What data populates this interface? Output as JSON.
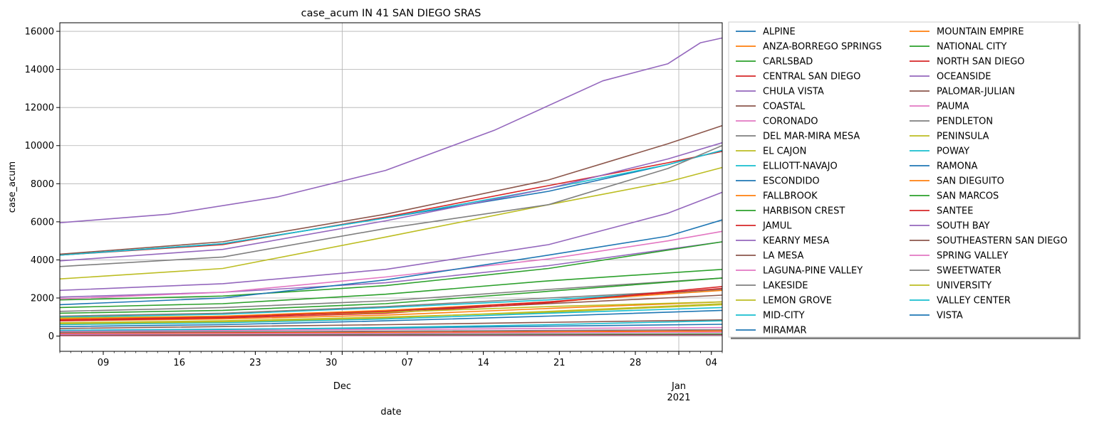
{
  "chart_data": {
    "type": "line",
    "title": "case_acum IN 41 SAN DIEGO SRAS",
    "xlabel": "date",
    "ylabel": "case_acum",
    "ylim": [
      -800,
      16450
    ],
    "y_ticks": [
      0,
      2000,
      4000,
      6000,
      8000,
      10000,
      12000,
      14000,
      16000
    ],
    "y_tick_labels": [
      "0",
      "2000",
      "4000",
      "6000",
      "8000",
      "10000",
      "12000",
      "14000",
      "16000"
    ],
    "xlim": [
      "2020-11-05",
      "2021-01-05"
    ],
    "x_major_ticks": [
      {
        "date": "2020-11-09",
        "label": "09"
      },
      {
        "date": "2020-11-16",
        "label": "16"
      },
      {
        "date": "2020-11-23",
        "label": "23"
      },
      {
        "date": "2020-11-30",
        "label": "30"
      },
      {
        "date": "2020-12-07",
        "label": "07"
      },
      {
        "date": "2020-12-14",
        "label": "14"
      },
      {
        "date": "2020-12-21",
        "label": "21"
      },
      {
        "date": "2020-12-28",
        "label": "28"
      },
      {
        "date": "2021-01-04",
        "label": "04"
      }
    ],
    "x_month_labels": [
      {
        "date": "2020-12-01",
        "label": "Dec"
      },
      {
        "date": "2021-01-01",
        "label": "Jan",
        "sublabel": "2021"
      }
    ],
    "grid": true,
    "legend": {
      "placement": "outside-right",
      "columns": 2
    },
    "series": [
      {
        "name": "ALPINE",
        "color": "#1f77b4",
        "x": [
          "2020-11-05",
          "2020-11-20",
          "2020-12-05",
          "2020-12-20",
          "2021-01-05"
        ],
        "values": [
          300,
          360,
          420,
          520,
          620
        ]
      },
      {
        "name": "ANZA-BORREGO SPRINGS",
        "color": "#ff7f0e",
        "x": [
          "2020-11-05",
          "2020-12-05",
          "2021-01-05"
        ],
        "values": [
          20,
          40,
          70
        ]
      },
      {
        "name": "CARLSBAD",
        "color": "#2ca02c",
        "x": [
          "2020-11-05",
          "2020-11-20",
          "2020-12-05",
          "2020-12-20",
          "2021-01-05"
        ],
        "values": [
          1500,
          1700,
          2200,
          2900,
          3500
        ]
      },
      {
        "name": "CENTRAL SAN DIEGO",
        "color": "#d62728",
        "x": [
          "2020-11-05",
          "2020-11-20",
          "2020-12-05",
          "2020-12-20",
          "2020-12-31",
          "2021-01-05"
        ],
        "values": [
          4250,
          4800,
          6250,
          7900,
          9100,
          9700
        ]
      },
      {
        "name": "CHULA VISTA",
        "color": "#9467bd",
        "x": [
          "2020-11-05",
          "2020-11-15",
          "2020-11-25",
          "2020-12-05",
          "2020-12-15",
          "2020-12-25",
          "2020-12-31",
          "2021-01-03",
          "2021-01-05"
        ],
        "values": [
          5950,
          6400,
          7300,
          8700,
          10800,
          13400,
          14300,
          15400,
          15650
        ]
      },
      {
        "name": "COASTAL",
        "color": "#8c564b",
        "x": [
          "2020-11-05",
          "2020-12-05",
          "2021-01-05"
        ],
        "values": [
          400,
          600,
          850
        ]
      },
      {
        "name": "CORONADO",
        "color": "#e377c2",
        "x": [
          "2020-11-05",
          "2020-12-05",
          "2021-01-05"
        ],
        "values": [
          250,
          350,
          450
        ]
      },
      {
        "name": "DEL MAR-MIRA MESA",
        "color": "#7f7f7f",
        "x": [
          "2020-11-05",
          "2020-11-20",
          "2020-12-05",
          "2020-12-20",
          "2021-01-05"
        ],
        "values": [
          1300,
          1500,
          1850,
          2450,
          3050
        ]
      },
      {
        "name": "EL CAJON",
        "color": "#bcbd22",
        "x": [
          "2020-11-05",
          "2020-11-20",
          "2020-12-05",
          "2020-12-20",
          "2020-12-31",
          "2021-01-05"
        ],
        "values": [
          3000,
          3550,
          5200,
          6900,
          8100,
          8850
        ]
      },
      {
        "name": "ELLIOTT-NAVAJO",
        "color": "#17becf",
        "x": [
          "2020-11-05",
          "2020-11-20",
          "2020-12-05",
          "2020-12-20",
          "2021-01-05"
        ],
        "values": [
          1000,
          1150,
          1500,
          1900,
          2450
        ]
      },
      {
        "name": "ESCONDIDO",
        "color": "#1f77b4",
        "x": [
          "2020-11-05",
          "2020-11-20",
          "2020-12-05",
          "2020-12-20",
          "2020-12-31",
          "2021-01-05"
        ],
        "values": [
          4250,
          4850,
          6200,
          7600,
          9000,
          9750
        ]
      },
      {
        "name": "FALLBROOK",
        "color": "#ff7f0e",
        "x": [
          "2020-11-05",
          "2020-11-20",
          "2020-12-05",
          "2020-12-20",
          "2021-01-05"
        ],
        "values": [
          800,
          900,
          1100,
          1450,
          1800
        ]
      },
      {
        "name": "HARBISON CREST",
        "color": "#2ca02c",
        "x": [
          "2020-11-05",
          "2020-12-05",
          "2021-01-05"
        ],
        "values": [
          60,
          80,
          110
        ]
      },
      {
        "name": "JAMUL",
        "color": "#d62728",
        "x": [
          "2020-11-05",
          "2020-12-05",
          "2021-01-05"
        ],
        "values": [
          150,
          200,
          280
        ]
      },
      {
        "name": "KEARNY MESA",
        "color": "#9467bd",
        "x": [
          "2020-11-05",
          "2020-11-20",
          "2020-12-05",
          "2020-12-20",
          "2021-01-05"
        ],
        "values": [
          2050,
          2300,
          2800,
          3700,
          4950
        ]
      },
      {
        "name": "LA MESA",
        "color": "#8c564b",
        "x": [
          "2020-11-05",
          "2020-11-20",
          "2020-12-05",
          "2020-12-20",
          "2021-01-05"
        ],
        "values": [
          900,
          1000,
          1300,
          1700,
          2150
        ]
      },
      {
        "name": "LAGUNA-PINE VALLEY",
        "color": "#e377c2",
        "x": [
          "2020-11-05",
          "2020-12-05",
          "2021-01-05"
        ],
        "values": [
          20,
          30,
          50
        ]
      },
      {
        "name": "LAKESIDE",
        "color": "#7f7f7f",
        "x": [
          "2020-11-05",
          "2020-11-20",
          "2020-12-05",
          "2020-12-20",
          "2021-01-05"
        ],
        "values": [
          1050,
          1200,
          1550,
          2000,
          2450
        ]
      },
      {
        "name": "LEMON GROVE",
        "color": "#bcbd22",
        "x": [
          "2020-11-05",
          "2020-11-20",
          "2020-12-05",
          "2020-12-20",
          "2021-01-05"
        ],
        "values": [
          700,
          800,
          1000,
          1250,
          1650
        ]
      },
      {
        "name": "MID-CITY",
        "color": "#17becf",
        "x": [
          "2020-11-05",
          "2020-11-20",
          "2020-12-05",
          "2020-12-20",
          "2020-12-31",
          "2021-01-05"
        ],
        "values": [
          4250,
          4850,
          6200,
          7750,
          9000,
          9750
        ]
      },
      {
        "name": "MIRAMAR",
        "color": "#1f77b4",
        "x": [
          "2020-11-05",
          "2020-12-05",
          "2021-01-05"
        ],
        "values": [
          50,
          60,
          80
        ]
      },
      {
        "name": "MOUNTAIN EMPIRE",
        "color": "#ff7f0e",
        "x": [
          "2020-11-05",
          "2020-12-05",
          "2021-01-05"
        ],
        "values": [
          120,
          180,
          260
        ]
      },
      {
        "name": "NATIONAL CITY",
        "color": "#2ca02c",
        "x": [
          "2020-11-05",
          "2020-11-20",
          "2020-12-05",
          "2020-12-20",
          "2021-01-05"
        ],
        "values": [
          1900,
          2100,
          2650,
          3550,
          4950
        ]
      },
      {
        "name": "NORTH SAN DIEGO",
        "color": "#d62728",
        "x": [
          "2020-11-05",
          "2020-11-20",
          "2020-12-05",
          "2020-12-20",
          "2021-01-05"
        ],
        "values": [
          800,
          950,
          1200,
          1750,
          2600
        ]
      },
      {
        "name": "OCEANSIDE",
        "color": "#9467bd",
        "x": [
          "2020-11-05",
          "2020-11-20",
          "2020-12-05",
          "2020-12-20",
          "2020-12-31",
          "2021-01-05"
        ],
        "values": [
          3950,
          4550,
          6050,
          7750,
          9300,
          10150
        ]
      },
      {
        "name": "PALOMAR-JULIAN",
        "color": "#8c564b",
        "x": [
          "2020-11-05",
          "2020-12-05",
          "2021-01-05"
        ],
        "values": [
          40,
          55,
          75
        ]
      },
      {
        "name": "PAUMA",
        "color": "#e377c2",
        "x": [
          "2020-11-05",
          "2020-12-05",
          "2021-01-05"
        ],
        "values": [
          100,
          140,
          200
        ]
      },
      {
        "name": "PENDLETON",
        "color": "#7f7f7f",
        "x": [
          "2020-11-05",
          "2020-12-05",
          "2021-01-05"
        ],
        "values": [
          200,
          260,
          340
        ]
      },
      {
        "name": "PENINSULA",
        "color": "#bcbd22",
        "x": [
          "2020-11-05",
          "2020-11-20",
          "2020-12-05",
          "2020-12-20",
          "2021-01-05"
        ],
        "values": [
          950,
          1050,
          1250,
          1550,
          1800
        ]
      },
      {
        "name": "POWAY",
        "color": "#17becf",
        "x": [
          "2020-11-05",
          "2020-11-20",
          "2020-12-05",
          "2020-12-20",
          "2021-01-05"
        ],
        "values": [
          600,
          700,
          900,
          1200,
          1500
        ]
      },
      {
        "name": "RAMONA",
        "color": "#1f77b4",
        "x": [
          "2020-11-05",
          "2020-11-20",
          "2020-12-05",
          "2020-12-20",
          "2021-01-05"
        ],
        "values": [
          500,
          600,
          800,
          1050,
          1350
        ]
      },
      {
        "name": "SAN DIEGUITO",
        "color": "#ff7f0e",
        "x": [
          "2020-11-05",
          "2020-11-20",
          "2020-12-05",
          "2020-12-20",
          "2021-01-05"
        ],
        "values": [
          900,
          1050,
          1350,
          1800,
          2400
        ]
      },
      {
        "name": "SAN MARCOS",
        "color": "#2ca02c",
        "x": [
          "2020-11-05",
          "2020-11-20",
          "2020-12-05",
          "2020-12-20",
          "2021-01-05"
        ],
        "values": [
          1200,
          1350,
          1700,
          2350,
          3050
        ]
      },
      {
        "name": "SANTEE",
        "color": "#d62728",
        "x": [
          "2020-11-05",
          "2020-11-20",
          "2020-12-05",
          "2020-12-20",
          "2021-01-05"
        ],
        "values": [
          850,
          1000,
          1300,
          1800,
          2500
        ]
      },
      {
        "name": "SOUTH BAY",
        "color": "#9467bd",
        "x": [
          "2020-11-05",
          "2020-11-20",
          "2020-12-05",
          "2020-12-20",
          "2020-12-31",
          "2021-01-05"
        ],
        "values": [
          2400,
          2750,
          3500,
          4800,
          6450,
          7550
        ]
      },
      {
        "name": "SOUTHEASTERN SAN DIEGO",
        "color": "#8c564b",
        "x": [
          "2020-11-05",
          "2020-11-20",
          "2020-12-05",
          "2020-12-20",
          "2020-12-31",
          "2021-01-05"
        ],
        "values": [
          4300,
          4950,
          6400,
          8200,
          10100,
          11050
        ]
      },
      {
        "name": "SPRING VALLEY",
        "color": "#e377c2",
        "x": [
          "2020-11-05",
          "2020-11-20",
          "2020-12-05",
          "2020-12-20",
          "2020-12-31",
          "2021-01-05"
        ],
        "values": [
          1950,
          2300,
          3100,
          4050,
          5000,
          5500
        ]
      },
      {
        "name": "SWEETWATER",
        "color": "#7f7f7f",
        "x": [
          "2020-11-05",
          "2020-11-20",
          "2020-12-05",
          "2020-12-20",
          "2020-12-31",
          "2021-01-05"
        ],
        "values": [
          3650,
          4150,
          5650,
          6900,
          8800,
          10000
        ]
      },
      {
        "name": "UNIVERSITY",
        "color": "#bcbd22",
        "x": [
          "2020-11-05",
          "2020-11-20",
          "2020-12-05",
          "2020-12-20",
          "2021-01-05"
        ],
        "values": [
          650,
          750,
          950,
          1300,
          1700
        ]
      },
      {
        "name": "VALLEY CENTER",
        "color": "#17becf",
        "x": [
          "2020-11-05",
          "2020-11-20",
          "2020-12-05",
          "2020-12-20",
          "2021-01-05"
        ],
        "values": [
          300,
          350,
          450,
          600,
          800
        ]
      },
      {
        "name": "VISTA",
        "color": "#1f77b4",
        "x": [
          "2020-11-05",
          "2020-11-20",
          "2020-12-05",
          "2020-12-20",
          "2020-12-31",
          "2021-01-05"
        ],
        "values": [
          1650,
          2000,
          2950,
          4250,
          5250,
          6100
        ]
      }
    ]
  }
}
